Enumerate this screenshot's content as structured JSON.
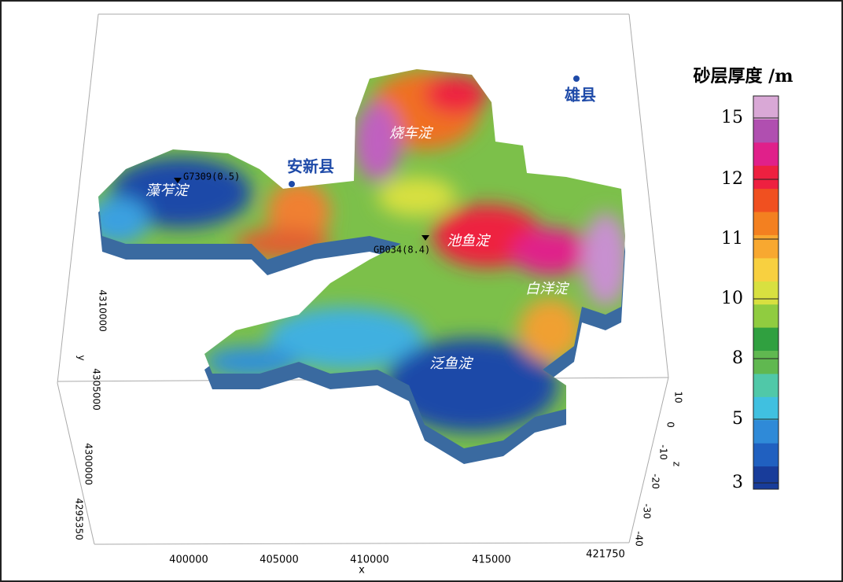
{
  "colorbar": {
    "title": "砂层厚度 /m",
    "ticks": [
      3,
      5,
      8,
      10,
      11,
      12,
      15
    ],
    "colors": [
      "#183c9a",
      "#2060c0",
      "#2f8ad8",
      "#40c0e0",
      "#50c8a8",
      "#60b850",
      "#30a040",
      "#90cc40",
      "#d8e040",
      "#f8d040",
      "#f8a830",
      "#f38020",
      "#f05020",
      "#ee2040",
      "#e0208a",
      "#b04fb0",
      "#d9a8d6"
    ]
  },
  "axes": {
    "x": {
      "label": "x",
      "ticks": [
        400000,
        405000,
        410000,
        415000,
        421750
      ]
    },
    "y": {
      "label": "y",
      "ticks": [
        4295350,
        4300000,
        4305000,
        4310000
      ]
    },
    "z": {
      "label": "z",
      "ticks": [
        -40,
        -30,
        -20,
        -10,
        0,
        10
      ]
    }
  },
  "places": [
    "雄县",
    "安新县"
  ],
  "lakes": [
    "藻苲淀",
    "烧车淀",
    "池鱼淀",
    "白洋淀",
    "泛鱼淀"
  ],
  "wells": [
    "G7309(0.5)",
    "GB034(8.4)"
  ]
}
